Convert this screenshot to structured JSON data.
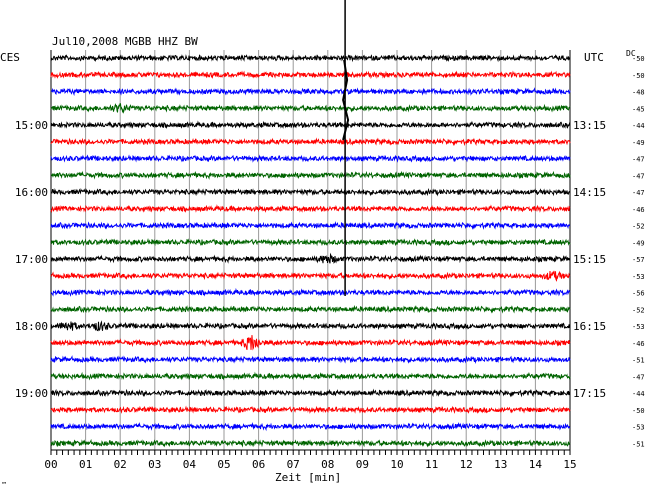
{
  "chart_data": {
    "type": "line",
    "title": "Jul10,2008   MGBB HHZ BW",
    "left_label": "CES",
    "right_label": "UTC",
    "dc_label": "DC",
    "xlabel": "Zeit [min]",
    "xlim": [
      0,
      15
    ],
    "x_ticks": [
      "00",
      "01",
      "02",
      "03",
      "04",
      "05",
      "06",
      "07",
      "08",
      "09",
      "10",
      "11",
      "12",
      "13",
      "14",
      "15"
    ],
    "left_times": [
      "15:00",
      "16:00",
      "17:00",
      "18:00",
      "19:00"
    ],
    "right_times": [
      "13:15",
      "14:15",
      "15:15",
      "16:15",
      "17:15"
    ],
    "dc_values": [
      "-50",
      "-50",
      "-48",
      "-45",
      "-44",
      "-49",
      "-47",
      "-47",
      "-47",
      "-46",
      "-52",
      "-49",
      "-57",
      "-53",
      "-56",
      "-52",
      "-53",
      "-46",
      "-51",
      "-47",
      "-44",
      "-50",
      "-53",
      "-51"
    ],
    "trace_colors": [
      "#000000",
      "#ff0000",
      "#0000ff",
      "#006400"
    ],
    "footnote": "™",
    "events": [
      {
        "trace": 3,
        "minute": 2.0,
        "amplitude": "small"
      },
      {
        "trace": 12,
        "minute": 8.0,
        "amplitude": "small"
      },
      {
        "trace": 13,
        "minute": 14.5,
        "amplitude": "small"
      },
      {
        "trace": 16,
        "minute": 0.5,
        "amplitude": "small"
      },
      {
        "trace": 16,
        "minute": 1.4,
        "amplitude": "small"
      },
      {
        "trace": 17,
        "minute": 5.8,
        "amplitude": "large"
      },
      {
        "trace": 0,
        "minute": 8.5,
        "amplitude": "teleseism"
      }
    ]
  }
}
